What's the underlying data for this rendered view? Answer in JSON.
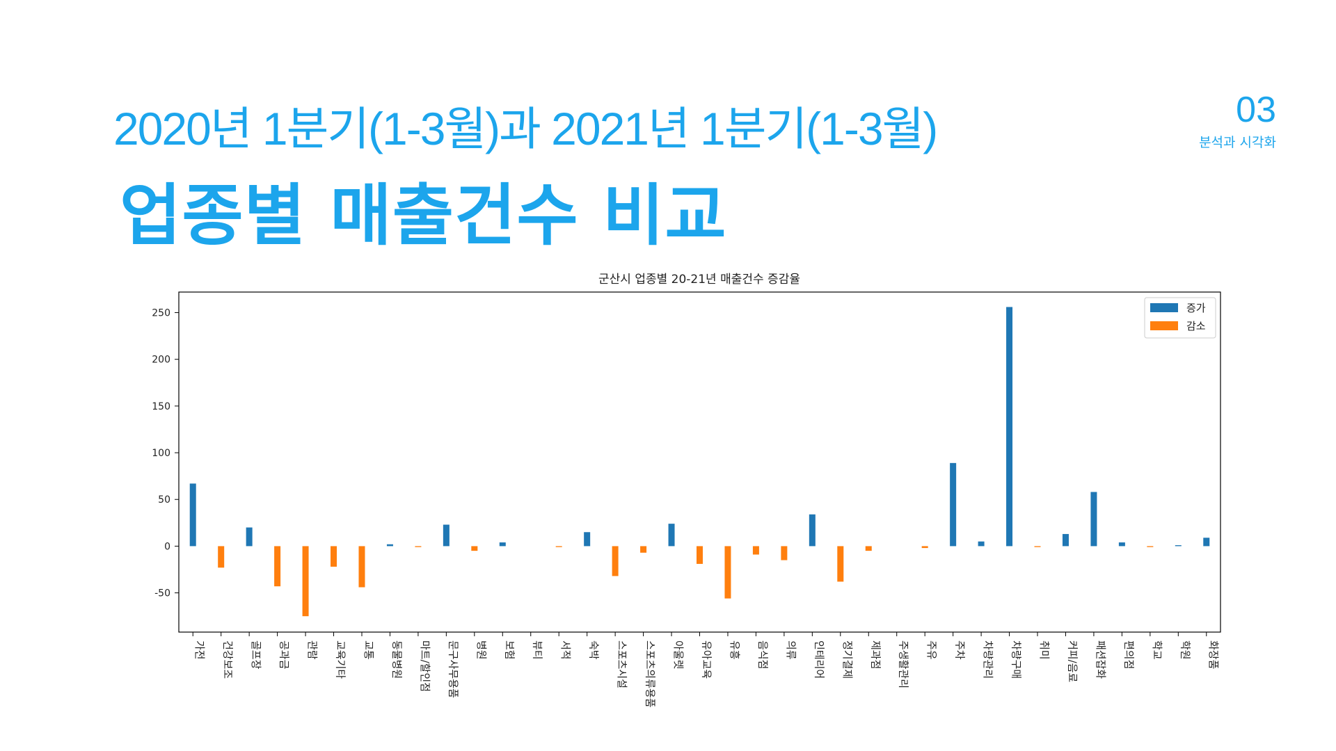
{
  "header": {
    "subtitle": "2020년 1분기(1-3월)과 2021년 1분기(1-3월)",
    "title": "업종별 매출건수 비교",
    "section_number": "03",
    "section_label": "분석과 시각화"
  },
  "colors": {
    "accent": "#1ca5ec",
    "increase": "#1f77b4",
    "decrease": "#ff7f0e"
  },
  "chart_data": {
    "type": "bar",
    "title": "군산시 업종별 20-21년 매출건수 증감율",
    "xlabel": "",
    "ylabel": "",
    "ylim": [
      -92,
      272
    ],
    "yticks": [
      250,
      200,
      150,
      100,
      50,
      0,
      -50
    ],
    "grid": false,
    "legend_position": "top-right",
    "categories": [
      "가전",
      "건강보조",
      "골프장",
      "공과금",
      "관람",
      "교육기타",
      "교통",
      "동물병원",
      "마트/할인점",
      "문구사무용품",
      "병원",
      "보험",
      "뷰티",
      "서적",
      "숙박",
      "스포츠시설",
      "스포츠의류용품",
      "아울렛",
      "유아교육",
      "유흥",
      "음식점",
      "의류",
      "인테리어",
      "정기결제",
      "제과점",
      "주생활관리",
      "주유",
      "주차",
      "차량관리",
      "차량구매",
      "취미",
      "커피/음료",
      "패션잡화",
      "편의점",
      "학교",
      "학원",
      "화장품"
    ],
    "series": [
      {
        "name": "증가",
        "values": [
          67,
          0,
          20,
          0,
          0,
          0,
          0,
          2,
          0,
          23,
          0,
          4,
          0,
          0,
          15,
          0,
          0,
          24,
          0,
          0,
          0,
          0,
          34,
          0,
          0,
          0,
          0,
          89,
          5,
          256,
          0,
          13,
          58,
          4,
          0,
          1,
          9
        ]
      },
      {
        "name": "감소",
        "values": [
          0,
          -23,
          0,
          -43,
          -75,
          -22,
          -44,
          0,
          -1,
          0,
          -5,
          0,
          0,
          -1,
          0,
          -32,
          -7,
          0,
          -19,
          -56,
          -9,
          -15,
          0,
          -38,
          -5,
          0,
          -2,
          0,
          0,
          0,
          -1,
          0,
          0,
          0,
          -1,
          0,
          0
        ]
      }
    ]
  }
}
